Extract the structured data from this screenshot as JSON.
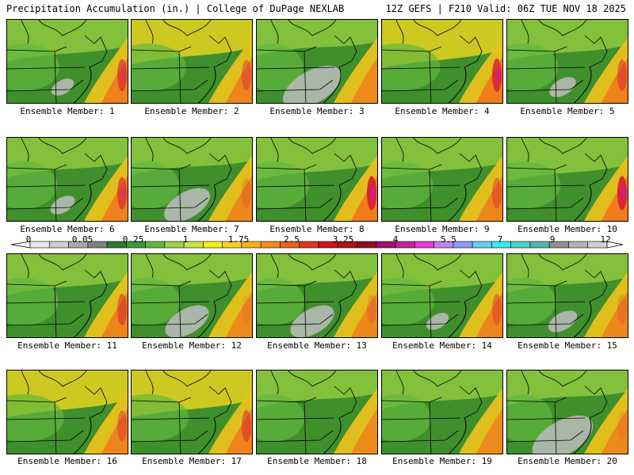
{
  "header": {
    "title": "Precipitation Accumulation (in.) | College of DuPage NEXLAB",
    "valid": "12Z GEFS | F210 Valid: 06Z TUE NOV 18 2025"
  },
  "caption_prefix": "Ensemble Member: ",
  "members": [
    {
      "label": "Ensemble Member: 1",
      "number": 1,
      "wet": 0.6,
      "gray": 0.05,
      "east": 0.8
    },
    {
      "label": "Ensemble Member: 2",
      "number": 2,
      "wet": 0.7,
      "gray": 0.0,
      "east": 0.7
    },
    {
      "label": "Ensemble Member: 3",
      "number": 3,
      "wet": 0.35,
      "gray": 0.9,
      "east": 0.5
    },
    {
      "label": "Ensemble Member: 4",
      "number": 4,
      "wet": 0.85,
      "gray": 0.0,
      "east": 0.9
    },
    {
      "label": "Ensemble Member: 5",
      "number": 5,
      "wet": 0.55,
      "gray": 0.15,
      "east": 0.75
    },
    {
      "label": "Ensemble Member: 6",
      "number": 6,
      "wet": 0.5,
      "gray": 0.1,
      "east": 0.8
    },
    {
      "label": "Ensemble Member: 7",
      "number": 7,
      "wet": 0.4,
      "gray": 0.6,
      "east": 0.6
    },
    {
      "label": "Ensemble Member: 8",
      "number": 8,
      "wet": 0.6,
      "gray": 0.0,
      "east": 0.95
    },
    {
      "label": "Ensemble Member: 9",
      "number": 9,
      "wet": 0.55,
      "gray": 0.0,
      "east": 0.7
    },
    {
      "label": "Ensemble Member: 10",
      "number": 10,
      "wet": 0.65,
      "gray": 0.0,
      "east": 0.95
    },
    {
      "label": "Ensemble Member: 11",
      "number": 11,
      "wet": 0.55,
      "gray": 0.0,
      "east": 0.75
    },
    {
      "label": "Ensemble Member: 12",
      "number": 12,
      "wet": 0.45,
      "gray": 0.55,
      "east": 0.55
    },
    {
      "label": "Ensemble Member: 13",
      "number": 13,
      "wet": 0.4,
      "gray": 0.55,
      "east": 0.6
    },
    {
      "label": "Ensemble Member: 14",
      "number": 14,
      "wet": 0.6,
      "gray": 0.05,
      "east": 0.7
    },
    {
      "label": "Ensemble Member: 15",
      "number": 15,
      "wet": 0.45,
      "gray": 0.2,
      "east": 0.6
    },
    {
      "label": "Ensemble Member: 16",
      "number": 16,
      "wet": 0.8,
      "gray": 0.0,
      "east": 0.7
    },
    {
      "label": "Ensemble Member: 17",
      "number": 17,
      "wet": 0.8,
      "gray": 0.0,
      "east": 0.75
    },
    {
      "label": "Ensemble Member: 18",
      "number": 18,
      "wet": 0.4,
      "gray": 0.0,
      "east": 0.5
    },
    {
      "label": "Ensemble Member: 19",
      "number": 19,
      "wet": 0.45,
      "gray": 0.0,
      "east": 0.5
    },
    {
      "label": "Ensemble Member: 20",
      "number": 20,
      "wet": 0.3,
      "gray": 0.95,
      "east": 0.55
    }
  ],
  "legend": {
    "labels": [
      "0",
      "0.05",
      "0.25",
      "1",
      "1.75",
      "2.5",
      "3.25",
      "4",
      "5.5",
      "7",
      "9",
      "12"
    ],
    "colors": [
      "#e8e8e8",
      "#cfcfcf",
      "#a8a8a8",
      "#7f7f7f",
      "#2f7a2f",
      "#3f9a33",
      "#62b83e",
      "#9bd24a",
      "#cde33f",
      "#f4f00f",
      "#f7d21d",
      "#f7b21b",
      "#f58a1c",
      "#f0601c",
      "#e23519",
      "#cf1416",
      "#b1101a",
      "#8e0f24",
      "#9b1370",
      "#c81e9d",
      "#e838d6",
      "#c27ff0",
      "#8a9af3",
      "#5fd1f5",
      "#36ecf2",
      "#46d5c9",
      "#54b4a8",
      "#8f8f8f",
      "#b4b4b4",
      "#d0d0d0"
    ]
  }
}
